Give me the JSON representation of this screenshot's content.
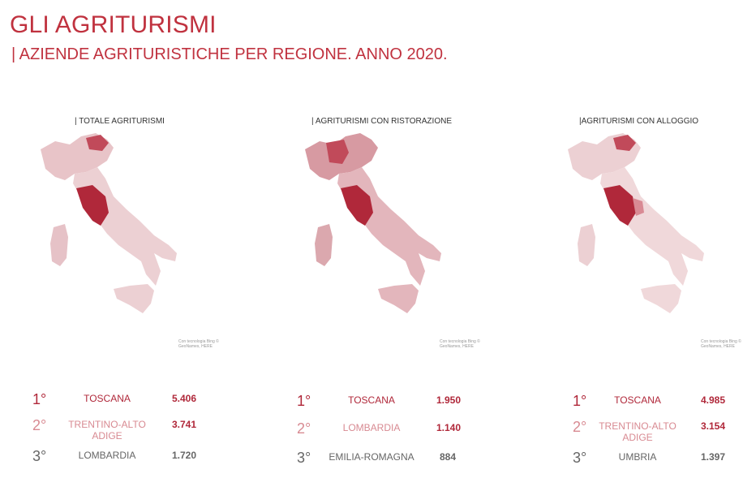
{
  "header": {
    "title": "GLI AGRITURISMI",
    "subtitle": "| AZIENDE AGRITURISTICHE PER REGIONE. ANNO 2020."
  },
  "colors": {
    "accent": "#c0323f",
    "first": "#b0283a",
    "second": "#d88a92",
    "third": "#666666"
  },
  "panels": [
    {
      "title": "| TOTALE AGRITURISMI",
      "credit": "Con tecnologia Bing © GeoNames, HERE",
      "ranking": [
        {
          "rank": "1°",
          "region": "TOSCANA",
          "value": "5.406"
        },
        {
          "rank": "2°",
          "region": "TRENTINO-ALTO ADIGE",
          "value": "3.741"
        },
        {
          "rank": "3°",
          "region": "LOMBARDIA",
          "value": "1.720"
        }
      ]
    },
    {
      "title": "| AGRITURISMI CON RISTORAZIONE",
      "credit": "Con tecnologia Bing © GeoNames, HERE",
      "ranking": [
        {
          "rank": "1°",
          "region": "TOSCANA",
          "value": "1.950"
        },
        {
          "rank": "2°",
          "region": "LOMBARDIA",
          "value": "1.140"
        },
        {
          "rank": "3°",
          "region": "EMILIA-ROMAGNA",
          "value": "884"
        }
      ]
    },
    {
      "title": "|AGRITURISMI CON ALLOGGIO",
      "credit": "Con tecnologia Bing © GeoNames, HERE",
      "ranking": [
        {
          "rank": "1°",
          "region": "TOSCANA",
          "value": "4.985"
        },
        {
          "rank": "2°",
          "region": "TRENTINO-ALTO ADIGE",
          "value": "3.154"
        },
        {
          "rank": "3°",
          "region": "UMBRIA",
          "value": "1.397"
        }
      ]
    }
  ]
}
